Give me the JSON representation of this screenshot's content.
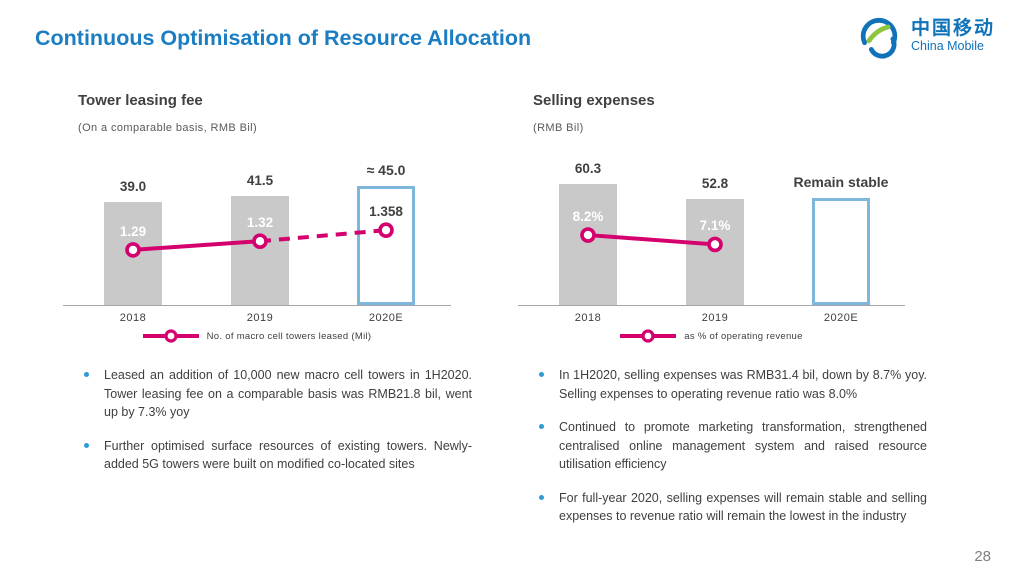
{
  "slide": {
    "title": "Continuous Optimisation of Resource Allocation",
    "page_number": "28",
    "colors": {
      "accent_blue": "#1B7EC2",
      "logo_blue": "#1073B9",
      "logo_green": "#8CC63E",
      "magenta": "#D4006E",
      "bar_gray": "#C9C9C9",
      "highlight_blue": "#7FB6DC",
      "bullet_blue": "#2E9BD5"
    }
  },
  "logo": {
    "cn": "中国移动",
    "en": "China Mobile"
  },
  "chart_data": [
    {
      "type": "bar",
      "title": "Tower leasing fee",
      "subtitle": "(On a comparable basis, RMB Bil)",
      "categories": [
        "2018",
        "2019",
        "2020E"
      ],
      "series": [
        {
          "name": "Tower leasing fee (RMB Bil)",
          "type": "bar",
          "values": [
            39.0,
            41.5,
            45.0
          ],
          "labels": [
            "39.0",
            "41.5",
            "≈ 45.0"
          ],
          "label_bold": [
            false,
            false,
            true
          ],
          "highlight_index": 2,
          "ylim": [
            0,
            55
          ]
        },
        {
          "name": "No. of macro cell towers leased (Mil)",
          "type": "line",
          "values": [
            1.29,
            1.32,
            1.358
          ],
          "labels": [
            "1.29",
            "1.32",
            "1.358"
          ],
          "label_style": [
            "light",
            "light",
            "dark"
          ],
          "dashed_from": 1,
          "ylim": [
            1.1,
            1.6
          ]
        }
      ],
      "legend": "No. of macro cell towers leased (Mil)"
    },
    {
      "type": "bar",
      "title": "Selling expenses",
      "subtitle": "(RMB Bil)",
      "categories": [
        "2018",
        "2019",
        "2020E"
      ],
      "series": [
        {
          "name": "Selling expenses (RMB Bil)",
          "type": "bar",
          "values": [
            60.3,
            52.8,
            53.0
          ],
          "labels": [
            "60.3",
            "52.8",
            "Remain stable"
          ],
          "label_bold": [
            false,
            false,
            true
          ],
          "highlight_index": 2,
          "ylim": [
            0,
            72
          ]
        },
        {
          "name": "as % of operating revenue",
          "type": "line",
          "values": [
            8.2,
            7.1,
            null
          ],
          "labels": [
            "8.2%",
            "7.1%",
            ""
          ],
          "label_style": [
            "light",
            "light",
            "light"
          ],
          "dashed_from": null,
          "ylim": [
            0,
            17
          ]
        }
      ],
      "legend": "as % of operating revenue"
    }
  ],
  "bullets": {
    "left": [
      "Leased an addition of 10,000 new macro cell towers in 1H2020. Tower leasing fee on a comparable basis was RMB21.8 bil, went up by 7.3% yoy",
      "Further optimised surface resources of existing towers. Newly-added 5G towers were built on modified co-located sites"
    ],
    "right": [
      "In 1H2020, selling expenses was RMB31.4 bil, down by 8.7% yoy.  Selling expenses to operating revenue ratio was 8.0%",
      "Continued to promote marketing transformation, strengthened centralised online management system and raised resource utilisation efficiency",
      "For full-year 2020, selling expenses will remain stable and selling expenses to revenue ratio will remain the lowest in the industry"
    ]
  }
}
